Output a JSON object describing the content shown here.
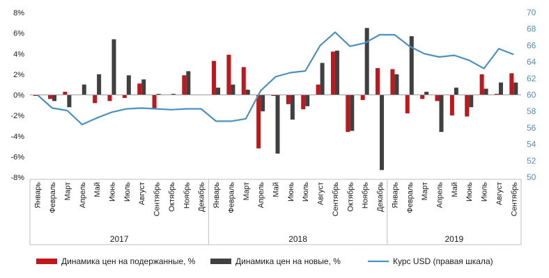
{
  "chart_data": {
    "type": "bar",
    "title": "",
    "categories": [
      "Январь",
      "Февраль",
      "Март",
      "Апрель",
      "Май",
      "Июнь",
      "Июль",
      "Август",
      "Сентябрь",
      "Октябрь",
      "Ноябрь",
      "Декабрь",
      "Январь",
      "Февраль",
      "Март",
      "Апрель",
      "Май",
      "Июнь",
      "Июль",
      "Август",
      "Сентябрь",
      "Октябрь",
      "Ноябрь",
      "Декабрь",
      "Январь",
      "Февраль",
      "Март",
      "Апрель",
      "Май",
      "Июнь",
      "Июль",
      "Август",
      "Сентябрь"
    ],
    "years": [
      {
        "label": "2017",
        "start": 0,
        "end": 11
      },
      {
        "label": "2018",
        "start": 12,
        "end": 23
      },
      {
        "label": "2019",
        "start": 24,
        "end": 32
      }
    ],
    "y_left": {
      "min": -8,
      "max": 8,
      "step": 2,
      "ticks": [
        "-8%",
        "-6%",
        "-4%",
        "-2%",
        "0%",
        "2%",
        "4%",
        "6%",
        "8%"
      ]
    },
    "y_right": {
      "min": 50,
      "max": 70,
      "step": 2,
      "ticks": [
        "50",
        "52",
        "54",
        "56",
        "58",
        "60",
        "62",
        "64",
        "66",
        "68",
        "70"
      ]
    },
    "series": [
      {
        "name": "Динамика цен на подержанные, %",
        "type": "bar",
        "axis": "left",
        "color": "#c0161c",
        "values": [
          -0.1,
          -0.4,
          0.3,
          0.0,
          -0.8,
          -0.6,
          -0.3,
          1.1,
          -1.3,
          0.0,
          1.9,
          0.0,
          3.3,
          3.9,
          2.7,
          -5.2,
          -0.1,
          -0.9,
          -1.4,
          1.0,
          4.2,
          -3.6,
          -0.5,
          2.6,
          2.5,
          -1.8,
          -0.4,
          -0.6,
          -2.0,
          -2.1,
          2.0,
          0.1,
          2.1
        ]
      },
      {
        "name": "Динамика цен на новые, %",
        "type": "bar",
        "axis": "left",
        "color": "#404040",
        "values": [
          0.0,
          -0.6,
          -1.2,
          1.0,
          2.0,
          5.4,
          1.9,
          1.5,
          0.1,
          0.1,
          2.3,
          0.0,
          0.7,
          1.0,
          0.5,
          -1.6,
          -5.7,
          -2.4,
          -1.1,
          3.1,
          4.3,
          -3.5,
          6.5,
          -7.3,
          2.0,
          5.7,
          0.3,
          -3.6,
          0.7,
          -1.2,
          0.6,
          1.2,
          1.2
        ]
      },
      {
        "name": "Курс USD (правая шкала)",
        "type": "line",
        "axis": "right",
        "color": "#4a90c0",
        "values": [
          60.0,
          58.4,
          58.1,
          56.4,
          57.2,
          57.9,
          58.3,
          58.4,
          58.3,
          58.2,
          58.3,
          58.3,
          56.8,
          56.8,
          57.1,
          60.5,
          62.2,
          62.7,
          62.9,
          66.0,
          67.6,
          65.9,
          66.3,
          67.3,
          67.3,
          65.9,
          65.0,
          64.6,
          64.8,
          64.2,
          63.2,
          65.6,
          64.9
        ]
      }
    ],
    "legend": {
      "position": "bottom"
    }
  }
}
